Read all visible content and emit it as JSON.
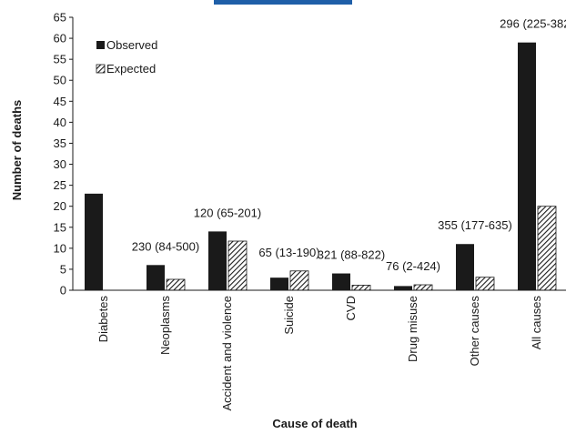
{
  "colors": {
    "header_bar": "#1f5fa8",
    "observed": "#1a1a1a",
    "expected_stripe": "#1a1a1a",
    "expected_bg": "#ffffff",
    "axis": "#1a1a1a"
  },
  "chart_data": {
    "type": "bar",
    "xlabel": "Cause of death",
    "ylabel": "Number of deaths",
    "ylim": [
      0,
      65
    ],
    "yticks": [
      0,
      5,
      10,
      15,
      20,
      25,
      30,
      35,
      40,
      45,
      50,
      55,
      60,
      65
    ],
    "grid": false,
    "legend_position": "top-left",
    "categories": [
      "Diabetes",
      "Neoplasms",
      "Accident and violence",
      "Suicide",
      "CVD",
      "Drug misuse",
      "Other causes",
      "All causes"
    ],
    "series": [
      {
        "name": "Observed",
        "values": [
          23,
          6,
          14,
          3,
          4,
          1,
          11,
          59
        ]
      },
      {
        "name": "Expected",
        "values": [
          0,
          2.6,
          11.7,
          4.6,
          1.2,
          1.3,
          3.1,
          20
        ]
      }
    ],
    "annotations": [
      "",
      "230 (84-500)",
      "120 (65-201)",
      "65 (13-190)",
      "321 (88-822)",
      "76 (2-424)",
      "355 (177-635)",
      "296 (225-382)"
    ]
  }
}
